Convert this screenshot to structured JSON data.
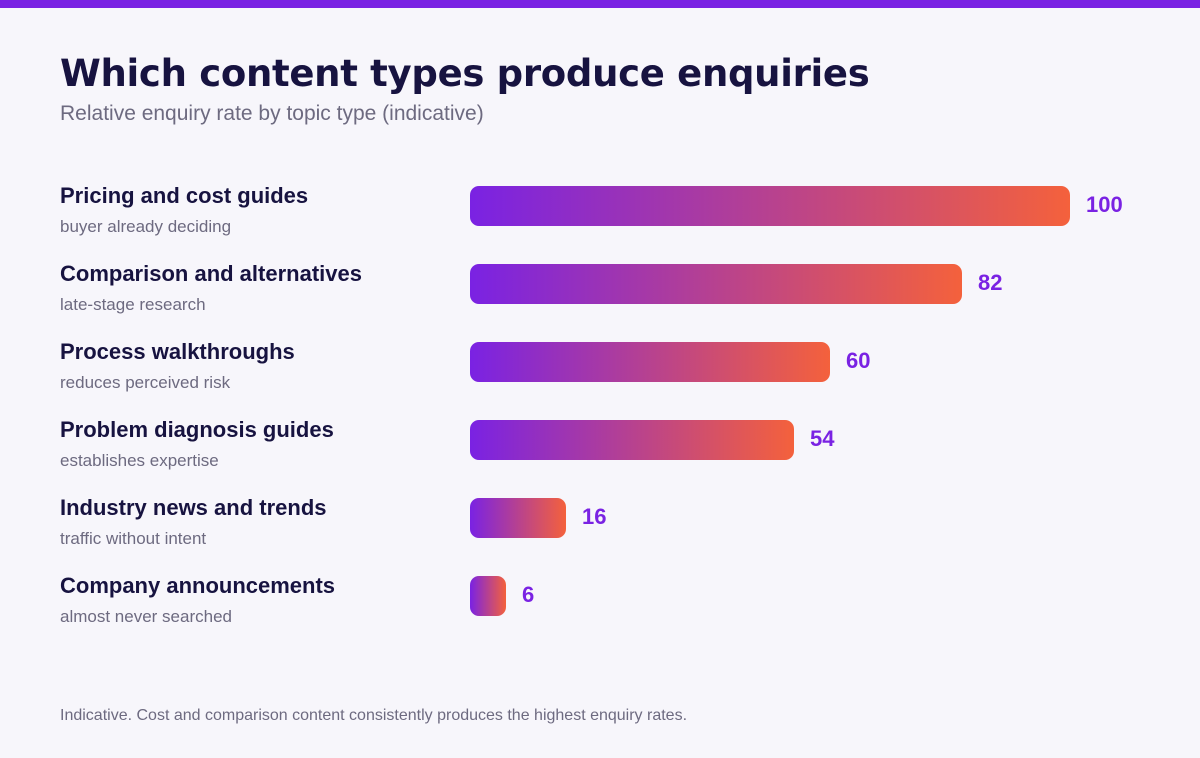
{
  "header": {
    "title": "Which content types produce enquiries",
    "subtitle": "Relative enquiry rate by topic type (indicative)"
  },
  "colors": {
    "accent": "#7a22e3",
    "gradient_start": "#7a22e3",
    "gradient_end": "#f4613c",
    "title_text": "#171340",
    "muted_text": "#6d6a80",
    "background": "#f7f6fb"
  },
  "chart_data": {
    "type": "bar",
    "orientation": "horizontal",
    "title": "Which content types produce enquiries",
    "subtitle": "Relative enquiry rate by topic type (indicative)",
    "categories": [
      "Pricing and cost guides",
      "Comparison and alternatives",
      "Process walkthroughs",
      "Problem diagnosis guides",
      "Industry news and trends",
      "Company announcements"
    ],
    "notes": [
      "buyer already deciding",
      "late-stage research",
      "reduces perceived risk",
      "establishes expertise",
      "traffic without intent",
      "almost never searched"
    ],
    "values": [
      100,
      82,
      60,
      54,
      16,
      6
    ],
    "xlim": [
      0,
      100
    ],
    "xlabel": "",
    "ylabel": "",
    "grid": false,
    "legend": "none"
  },
  "footer": {
    "note": "Indicative. Cost and comparison content consistently produces the highest enquiry rates."
  }
}
